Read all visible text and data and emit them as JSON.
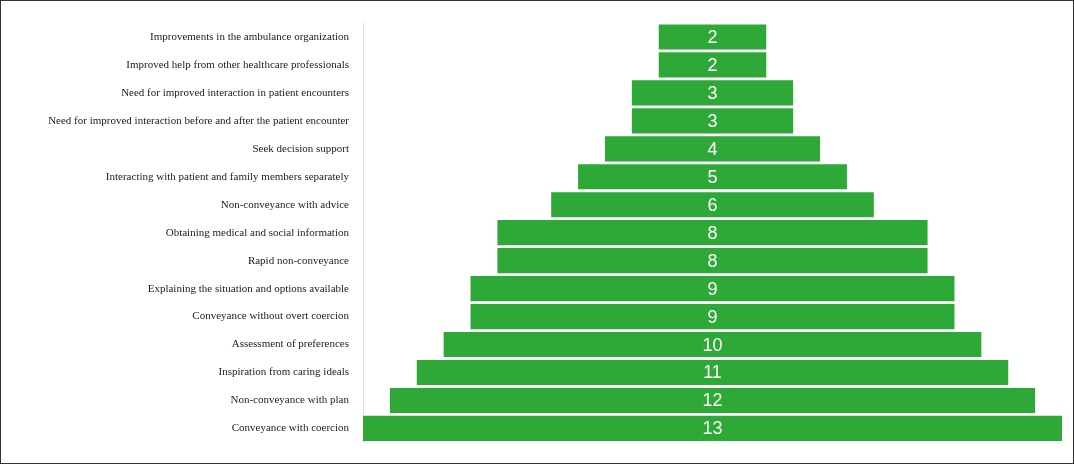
{
  "chart_data": {
    "type": "other",
    "categories": [
      "Improvements in the ambulance organization",
      "Improved help from other healthcare professionals",
      "Need for improved interaction in patient encounters",
      "Need for improved interaction before and after the patient encounter",
      "Seek decision support",
      "Interacting with patient and family members separately",
      "Non-conveyance with advice",
      "Obtaining medical and social information",
      "Rapid non-conveyance",
      "Explaining the situation and options available",
      "Conveyance without overt coercion",
      "Assessment of preferences",
      "Inspiration from caring ideals",
      "Non-conveyance with plan",
      "Conveyance with coercion"
    ],
    "values": [
      2,
      2,
      3,
      3,
      4,
      5,
      6,
      8,
      8,
      9,
      9,
      10,
      11,
      12,
      13
    ],
    "color": "#2ea836",
    "data_labels": true
  }
}
